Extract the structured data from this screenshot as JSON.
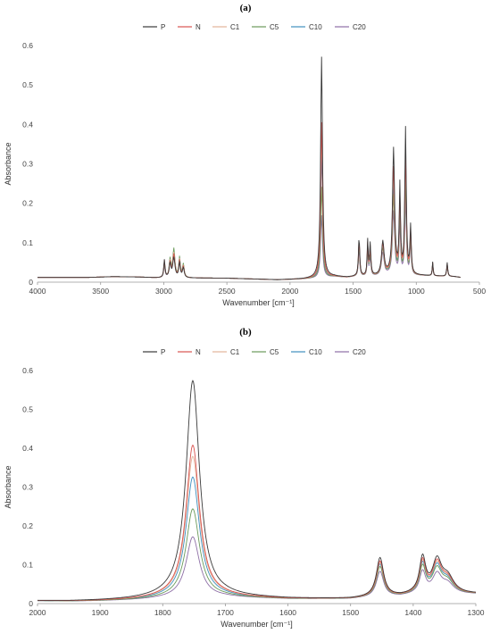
{
  "panel_labels": [
    "(a)",
    "(b)"
  ],
  "legend": [
    {
      "name": "P",
      "color": "#3a3a3a"
    },
    {
      "name": "N",
      "color": "#d9534f"
    },
    {
      "name": "C1",
      "color": "#e3b49a"
    },
    {
      "name": "C5",
      "color": "#6a9a5a"
    },
    {
      "name": "C10",
      "color": "#3f8fbf"
    },
    {
      "name": "C20",
      "color": "#8e6fa6"
    }
  ],
  "chart_data": [
    {
      "type": "line",
      "panel": "(a)",
      "xlabel": "Wavenumber [cm⁻¹]",
      "ylabel": "Absorbance",
      "xlim": [
        4000,
        500
      ],
      "ylim": [
        0,
        0.6
      ],
      "x_reversed": true,
      "xticks": [
        4000,
        3500,
        3000,
        2500,
        2000,
        1500,
        1000,
        500
      ],
      "yticks": [
        "0",
        "0.1",
        "0.2",
        "0.3",
        "0.4",
        "0.5",
        "0.6"
      ],
      "baseline": {
        "x": [
          4000,
          3600,
          3400,
          3200,
          3050,
          2500,
          2300,
          2100,
          1900,
          1800,
          1650,
          1550,
          1480,
          1300,
          1200,
          900,
          700,
          650
        ],
        "y": [
          0.012,
          0.012,
          0.014,
          0.013,
          0.011,
          0.01,
          0.008,
          0.006,
          0.008,
          0.01,
          0.014,
          0.012,
          0.014,
          0.015,
          0.018,
          0.016,
          0.014,
          0.012
        ]
      },
      "peak_positions": [
        2995,
        2950,
        2920,
        2875,
        2845,
        1750,
        1453,
        1385,
        1365,
        1265,
        1180,
        1130,
        1085,
        1045,
        870,
        755
      ],
      "peak_widths": [
        6,
        8,
        10,
        7,
        8,
        9,
        6,
        5,
        6,
        12,
        10,
        6,
        7,
        6,
        4,
        5
      ],
      "series": [
        {
          "name": "P",
          "peaks": [
            0.045,
            0.035,
            0.05,
            0.038,
            0.025,
            0.56,
            0.1,
            0.088,
            0.08,
            0.085,
            0.318,
            0.22,
            0.368,
            0.12,
            0.035,
            0.035
          ]
        },
        {
          "name": "N",
          "peaks": [
            0.043,
            0.038,
            0.058,
            0.042,
            0.028,
            0.394,
            0.092,
            0.08,
            0.072,
            0.08,
            0.27,
            0.2,
            0.31,
            0.11,
            0.033,
            0.032
          ]
        },
        {
          "name": "C1",
          "peaks": [
            0.04,
            0.04,
            0.062,
            0.045,
            0.03,
            0.365,
            0.088,
            0.075,
            0.068,
            0.075,
            0.25,
            0.185,
            0.29,
            0.105,
            0.032,
            0.031
          ]
        },
        {
          "name": "C5",
          "peaks": [
            0.035,
            0.045,
            0.072,
            0.05,
            0.034,
            0.23,
            0.08,
            0.068,
            0.06,
            0.068,
            0.2,
            0.16,
            0.24,
            0.095,
            0.03,
            0.029
          ]
        },
        {
          "name": "C10",
          "peaks": [
            0.038,
            0.042,
            0.066,
            0.047,
            0.032,
            0.312,
            0.085,
            0.072,
            0.064,
            0.072,
            0.225,
            0.172,
            0.262,
            0.1,
            0.031,
            0.03
          ]
        },
        {
          "name": "C20",
          "peaks": [
            0.03,
            0.038,
            0.06,
            0.044,
            0.03,
            0.158,
            0.07,
            0.058,
            0.05,
            0.058,
            0.16,
            0.13,
            0.195,
            0.082,
            0.028,
            0.027
          ]
        }
      ]
    },
    {
      "type": "line",
      "panel": "(b)",
      "xlabel": "Wavenumber [cm⁻¹]",
      "ylabel": "Absorbance",
      "xlim": [
        2000,
        1300
      ],
      "ylim": [
        0,
        0.6
      ],
      "x_reversed": true,
      "xticks": [
        2000,
        1900,
        1800,
        1700,
        1600,
        1500,
        1400,
        1300
      ],
      "yticks": [
        "0",
        "0.1",
        "0.2",
        "0.3",
        "0.4",
        "0.5",
        "0.6"
      ],
      "baseline": {
        "x": [
          2000,
          1950,
          1900,
          1850,
          1800,
          1700,
          1650,
          1600,
          1500,
          1480,
          1420,
          1400,
          1300
        ],
        "y": [
          0.007,
          0.006,
          0.007,
          0.009,
          0.012,
          0.016,
          0.014,
          0.012,
          0.012,
          0.014,
          0.018,
          0.022,
          0.024
        ]
      },
      "peak_positions": [
        1752,
        1453,
        1385,
        1362,
        1345
      ],
      "peak_widths": [
        13,
        7,
        6,
        9,
        12
      ],
      "series": [
        {
          "name": "P",
          "peaks": [
            0.56,
            0.1,
            0.09,
            0.08,
            0.04
          ]
        },
        {
          "name": "N",
          "peaks": [
            0.394,
            0.092,
            0.082,
            0.074,
            0.037
          ]
        },
        {
          "name": "C1",
          "peaks": [
            0.365,
            0.088,
            0.078,
            0.07,
            0.035
          ]
        },
        {
          "name": "C5",
          "peaks": [
            0.23,
            0.078,
            0.068,
            0.06,
            0.03
          ]
        },
        {
          "name": "C10",
          "peaks": [
            0.312,
            0.084,
            0.074,
            0.066,
            0.033
          ]
        },
        {
          "name": "C20",
          "peaks": [
            0.158,
            0.066,
            0.056,
            0.048,
            0.025
          ]
        }
      ]
    }
  ]
}
